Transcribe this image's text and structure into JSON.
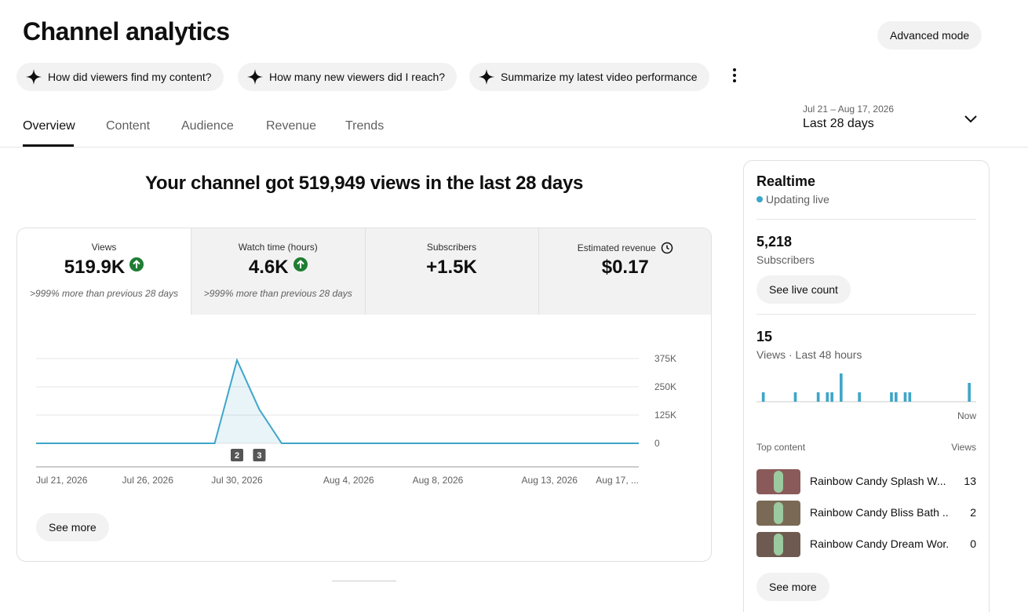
{
  "header": {
    "title": "Channel analytics",
    "advanced_button": "Advanced mode"
  },
  "suggestions": [
    "How did viewers find my content?",
    "How many new viewers did I reach?",
    "Summarize my latest video performance"
  ],
  "tabs": [
    "Overview",
    "Content",
    "Audience",
    "Revenue",
    "Trends"
  ],
  "date_range": {
    "range": "Jul 21 – Aug 17, 2026",
    "label": "Last 28 days"
  },
  "headline": "Your channel got 519,949 views in the last 28 days",
  "metrics": [
    {
      "label": "Views",
      "value": "519.9K",
      "up": true,
      "note": ">999% more than previous 28 days"
    },
    {
      "label": "Watch time (hours)",
      "value": "4.6K",
      "up": true,
      "note": ">999% more than previous 28 days"
    },
    {
      "label": "Subscribers",
      "value": "+1.5K",
      "up": false
    },
    {
      "label": "Estimated revenue",
      "value": "$0.17",
      "up": false
    }
  ],
  "see_more": "See more",
  "chart_data": [
    {
      "type": "line",
      "categories": [
        "Jul 21, 2026",
        null,
        null,
        null,
        null,
        "Jul 26, 2026",
        null,
        null,
        null,
        "Jul 30, 2026",
        null,
        null,
        null,
        null,
        "Aug 4, 2026",
        null,
        null,
        null,
        "Aug 8, 2026",
        null,
        null,
        null,
        null,
        "Aug 13, 2026",
        null,
        null,
        null,
        "Aug 17, ..."
      ],
      "values": [
        0,
        0,
        0,
        0,
        0,
        0,
        0,
        0,
        0,
        368000,
        150000,
        0,
        0,
        0,
        0,
        0,
        0,
        0,
        0,
        0,
        0,
        0,
        0,
        0,
        0,
        0,
        0,
        0
      ],
      "color": "#3ea6c8",
      "ylim": [
        0,
        375000
      ],
      "yticks": [
        0,
        {
          "value": 125000,
          "label": "125K"
        },
        {
          "value": 250000,
          "label": "250K"
        },
        {
          "value": 375000,
          "label": "375K"
        }
      ],
      "grid": true,
      "annotations": [
        {
          "index": 9,
          "text": "2"
        },
        {
          "index": 10,
          "text": "3"
        }
      ]
    },
    {
      "type": "bar",
      "values": [
        0,
        1,
        0,
        0,
        0,
        0,
        0,
        0,
        1,
        0,
        0,
        0,
        0,
        1,
        0,
        1,
        1,
        0,
        3,
        0,
        0,
        0,
        1,
        0,
        0,
        0,
        0,
        0,
        0,
        1,
        1,
        0,
        1,
        1,
        0,
        0,
        0,
        0,
        0,
        0,
        0,
        0,
        0,
        0,
        0,
        0,
        2,
        0
      ],
      "color": "#3ea6c8",
      "ylim": [
        0,
        3
      ],
      "end_label": "Now"
    }
  ],
  "realtime": {
    "title": "Realtime",
    "status": "Updating live",
    "subscribers": {
      "value": "5,218",
      "label": "Subscribers",
      "button": "See live count"
    },
    "views": {
      "value": "15",
      "label": "Views · Last 48 hours"
    },
    "top_content": {
      "header": "Top content",
      "views_header": "Views",
      "items": [
        {
          "title": "Rainbow Candy Splash W...",
          "views": "13"
        },
        {
          "title": "Rainbow Candy Bliss Bath ...",
          "views": "2"
        },
        {
          "title": "Rainbow Candy Dream Wor...",
          "views": "0"
        }
      ]
    },
    "see_more": "See more"
  }
}
